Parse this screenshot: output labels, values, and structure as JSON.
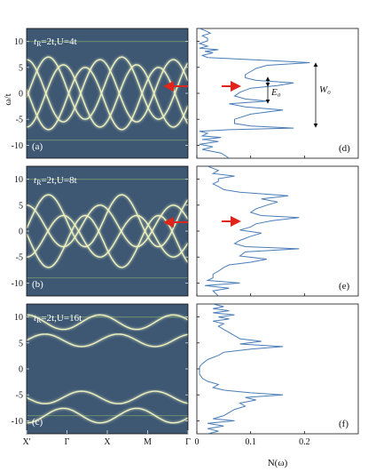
{
  "figure": {
    "y_axis_label": "ω/t",
    "x_axis_label": "N(ω)"
  },
  "chart_data": [
    {
      "type": "heatmap",
      "panel": "(a)",
      "annotation": "t_R=2t, U=4t",
      "xticks": [
        "X'",
        "Γ",
        "X",
        "M",
        "Γ"
      ],
      "yticks": [
        -10,
        -5,
        0,
        5,
        10
      ],
      "ylim": [
        -12.5,
        12.5
      ],
      "colors": {
        "background": "#3e5874",
        "bands": "#eef2c0",
        "weak": "#8ab36a",
        "arrow": "#e0241c"
      }
    },
    {
      "type": "heatmap",
      "panel": "(b)",
      "annotation": "t_R=2t, U=8t",
      "xticks": [
        "X'",
        "Γ",
        "X",
        "M",
        "Γ"
      ],
      "yticks": [
        -10,
        -5,
        0,
        5,
        10
      ],
      "ylim": [
        -12.5,
        12.5
      ]
    },
    {
      "type": "heatmap",
      "panel": "(c)",
      "annotation": "t_R=2t, U=16t",
      "xticks": [
        "X'",
        "Γ",
        "X",
        "M",
        "Γ"
      ],
      "yticks": [
        -10,
        -5,
        0,
        5,
        10
      ],
      "ylim": [
        -12.5,
        12.5
      ]
    },
    {
      "type": "line",
      "panel": "(d)",
      "xticks": [
        0,
        0.1,
        0.2
      ],
      "xlim": [
        0,
        0.3
      ],
      "ylim": [
        -12.5,
        12.5
      ],
      "annotations": [
        "E₀",
        "W₀"
      ],
      "x": [
        -12.5,
        -11.5,
        -10.8,
        -10.3,
        -9.8,
        -9.3,
        -8.9,
        -8.5,
        -8.2,
        -7.7,
        -7.3,
        -7.0,
        -6.7,
        -6.3,
        -5.8,
        -5.0,
        -4.0,
        -3.2,
        -2.6,
        -2.0,
        -1.5,
        -1.1,
        -0.5,
        0.2,
        1.0,
        1.5,
        2.0,
        2.5,
        3.0,
        3.6,
        4.2,
        4.8,
        5.4,
        5.9,
        6.3,
        6.6,
        6.9,
        7.3,
        7.8,
        8.1,
        8.4,
        8.7,
        9.1,
        9.6,
        10.1,
        10.6,
        11.1,
        11.6,
        12.1,
        12.5
      ],
      "values": [
        0.06,
        0.045,
        0.01,
        0.03,
        0.005,
        0.04,
        0.01,
        0.045,
        0.01,
        0.02,
        0.005,
        0.06,
        0.18,
        0.1,
        0.07,
        0.07,
        0.1,
        0.16,
        0.09,
        0.06,
        0.13,
        0.09,
        0.07,
        0.08,
        0.1,
        0.15,
        0.18,
        0.11,
        0.09,
        0.09,
        0.1,
        0.11,
        0.13,
        0.21,
        0.14,
        0.08,
        0.02,
        0.01,
        0.03,
        0.015,
        0.04,
        0.005,
        0.02,
        0.005,
        0.02,
        0.02,
        0.01,
        0.025,
        0.015,
        0.005
      ]
    },
    {
      "type": "line",
      "panel": "(e)",
      "xticks": [
        0,
        0.1,
        0.2
      ],
      "xlim": [
        0,
        0.3
      ],
      "ylim": [
        -12.5,
        12.5
      ],
      "x": [
        -12.5,
        -11.5,
        -11.0,
        -10.5,
        -10.0,
        -9.5,
        -9.0,
        -8.3,
        -7.7,
        -7.0,
        -6.5,
        -6.0,
        -5.4,
        -4.8,
        -4.0,
        -3.4,
        -3.0,
        -2.4,
        -1.8,
        -1.0,
        -0.4,
        0.2,
        0.8,
        1.4,
        2.0,
        2.6,
        3.0,
        3.6,
        4.3,
        5.0,
        5.6,
        6.2,
        6.8,
        7.5,
        8.0,
        8.6,
        9.1,
        9.6,
        10.1,
        10.6,
        11.1,
        11.7,
        12.5
      ],
      "values": [
        0.04,
        0.03,
        0.06,
        0.015,
        0.08,
        0.02,
        0.03,
        0.03,
        0.04,
        0.05,
        0.06,
        0.1,
        0.13,
        0.08,
        0.09,
        0.19,
        0.09,
        0.07,
        0.08,
        0.1,
        0.12,
        0.08,
        0.1,
        0.11,
        0.14,
        0.19,
        0.12,
        0.1,
        0.11,
        0.13,
        0.15,
        0.12,
        0.17,
        0.08,
        0.05,
        0.04,
        0.03,
        0.04,
        0.04,
        0.07,
        0.03,
        0.04,
        0.02
      ]
    },
    {
      "type": "line",
      "panel": "(f)",
      "xticks": [
        0,
        0.1,
        0.2
      ],
      "xlim": [
        0,
        0.3
      ],
      "ylim": [
        -12.5,
        12.5
      ],
      "x": [
        -12.5,
        -12.0,
        -11.5,
        -11.0,
        -10.5,
        -10.0,
        -9.6,
        -9.0,
        -8.4,
        -7.8,
        -7.2,
        -6.6,
        -6.0,
        -5.5,
        -5.0,
        -4.6,
        -4.1,
        -3.6,
        -3.0,
        -2.4,
        -1.8,
        -1.0,
        -0.4,
        0.0,
        0.4,
        1.0,
        1.8,
        2.6,
        3.2,
        3.8,
        4.3,
        4.8,
        5.3,
        5.8,
        6.4,
        7.0,
        7.6,
        8.2,
        8.7,
        9.2,
        9.6,
        10.0,
        10.4,
        10.8,
        11.2,
        11.6,
        12.0,
        12.5
      ],
      "values": [
        0.02,
        0.04,
        0.02,
        0.05,
        0.02,
        0.07,
        0.03,
        0.05,
        0.06,
        0.07,
        0.09,
        0.08,
        0.11,
        0.09,
        0.16,
        0.1,
        0.05,
        0.03,
        0.04,
        0.02,
        0.01,
        0.005,
        0.005,
        0.005,
        0.005,
        0.01,
        0.02,
        0.04,
        0.05,
        0.1,
        0.16,
        0.08,
        0.12,
        0.08,
        0.07,
        0.06,
        0.05,
        0.04,
        0.05,
        0.03,
        0.06,
        0.04,
        0.07,
        0.03,
        0.06,
        0.03,
        0.05,
        0.03
      ]
    }
  ]
}
